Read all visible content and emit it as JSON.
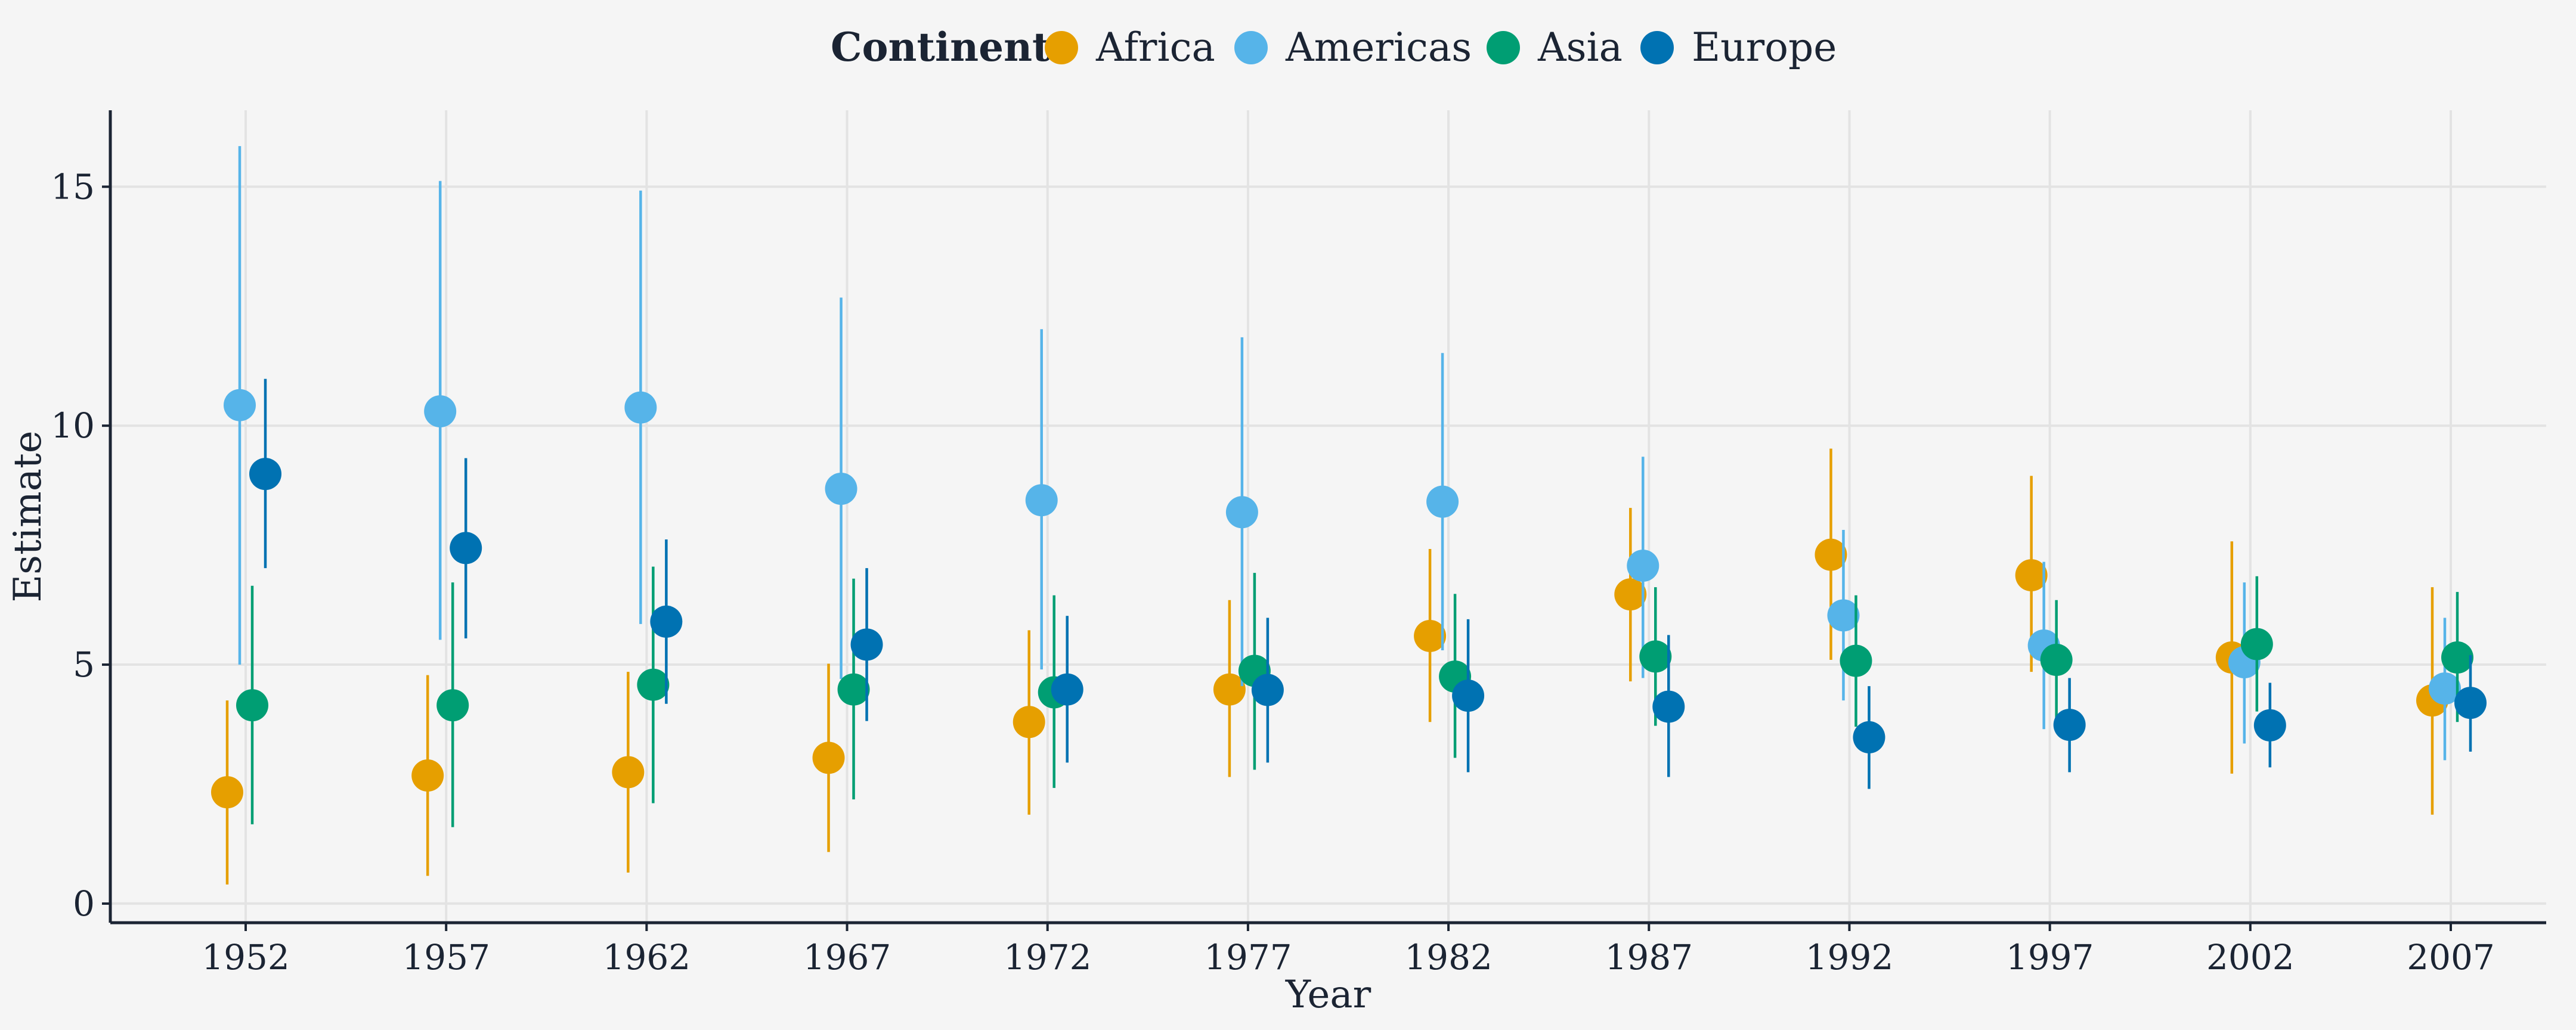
{
  "chart_data": {
    "type": "scatter",
    "subtype": "point-range",
    "xlabel": "Year",
    "ylabel": "Estimate",
    "ylim": [
      -0.4,
      16.6
    ],
    "yticks": [
      0,
      5,
      10,
      15
    ],
    "grid": true,
    "legend": {
      "title": "Continent",
      "position": "top"
    },
    "categories": [
      "1952",
      "1957",
      "1962",
      "1967",
      "1972",
      "1977",
      "1982",
      "1987",
      "1992",
      "1997",
      "2002",
      "2007"
    ],
    "series": [
      {
        "name": "Africa",
        "color": "#E69F00",
        "values": [
          2.33,
          2.68,
          2.75,
          3.05,
          3.8,
          4.48,
          5.6,
          6.47,
          7.3,
          6.87,
          5.15,
          4.25
        ],
        "lower": [
          0.4,
          0.58,
          0.65,
          1.08,
          1.86,
          2.65,
          3.8,
          4.65,
          5.1,
          4.85,
          2.72,
          1.86
        ],
        "upper": [
          4.25,
          4.78,
          4.85,
          5.02,
          5.72,
          6.35,
          7.42,
          8.28,
          9.52,
          8.95,
          7.58,
          6.62
        ]
      },
      {
        "name": "Americas",
        "color": "#56B4E9",
        "values": [
          10.43,
          10.3,
          10.38,
          8.68,
          8.44,
          8.19,
          8.41,
          7.07,
          6.03,
          5.4,
          5.05,
          4.5
        ],
        "lower": [
          5.0,
          5.52,
          5.85,
          4.7,
          4.9,
          4.55,
          5.3,
          4.72,
          4.25,
          3.65,
          3.35,
          3.0
        ],
        "upper": [
          15.85,
          15.12,
          14.92,
          12.68,
          12.02,
          11.85,
          11.52,
          9.35,
          7.82,
          7.15,
          6.72,
          5.98
        ]
      },
      {
        "name": "Asia",
        "color": "#009E73",
        "values": [
          4.15,
          4.15,
          4.58,
          4.48,
          4.42,
          4.87,
          4.75,
          5.17,
          5.08,
          5.1,
          5.43,
          5.15
        ],
        "lower": [
          1.66,
          1.6,
          2.1,
          2.18,
          2.42,
          2.8,
          3.05,
          3.72,
          3.7,
          3.85,
          4.02,
          3.8
        ],
        "upper": [
          6.65,
          6.72,
          7.05,
          6.8,
          6.45,
          6.92,
          6.48,
          6.62,
          6.45,
          6.35,
          6.85,
          6.52
        ]
      },
      {
        "name": "Europe",
        "color": "#0072B2",
        "values": [
          8.99,
          7.44,
          5.9,
          5.42,
          4.48,
          4.47,
          4.35,
          4.12,
          3.48,
          3.74,
          3.73,
          4.2
        ],
        "lower": [
          7.02,
          5.55,
          4.18,
          3.82,
          2.95,
          2.95,
          2.75,
          2.65,
          2.4,
          2.75,
          2.85,
          3.18
        ],
        "upper": [
          10.98,
          9.32,
          7.62,
          7.02,
          6.02,
          5.98,
          5.95,
          5.62,
          4.55,
          4.72,
          4.62,
          5.2
        ]
      }
    ]
  }
}
